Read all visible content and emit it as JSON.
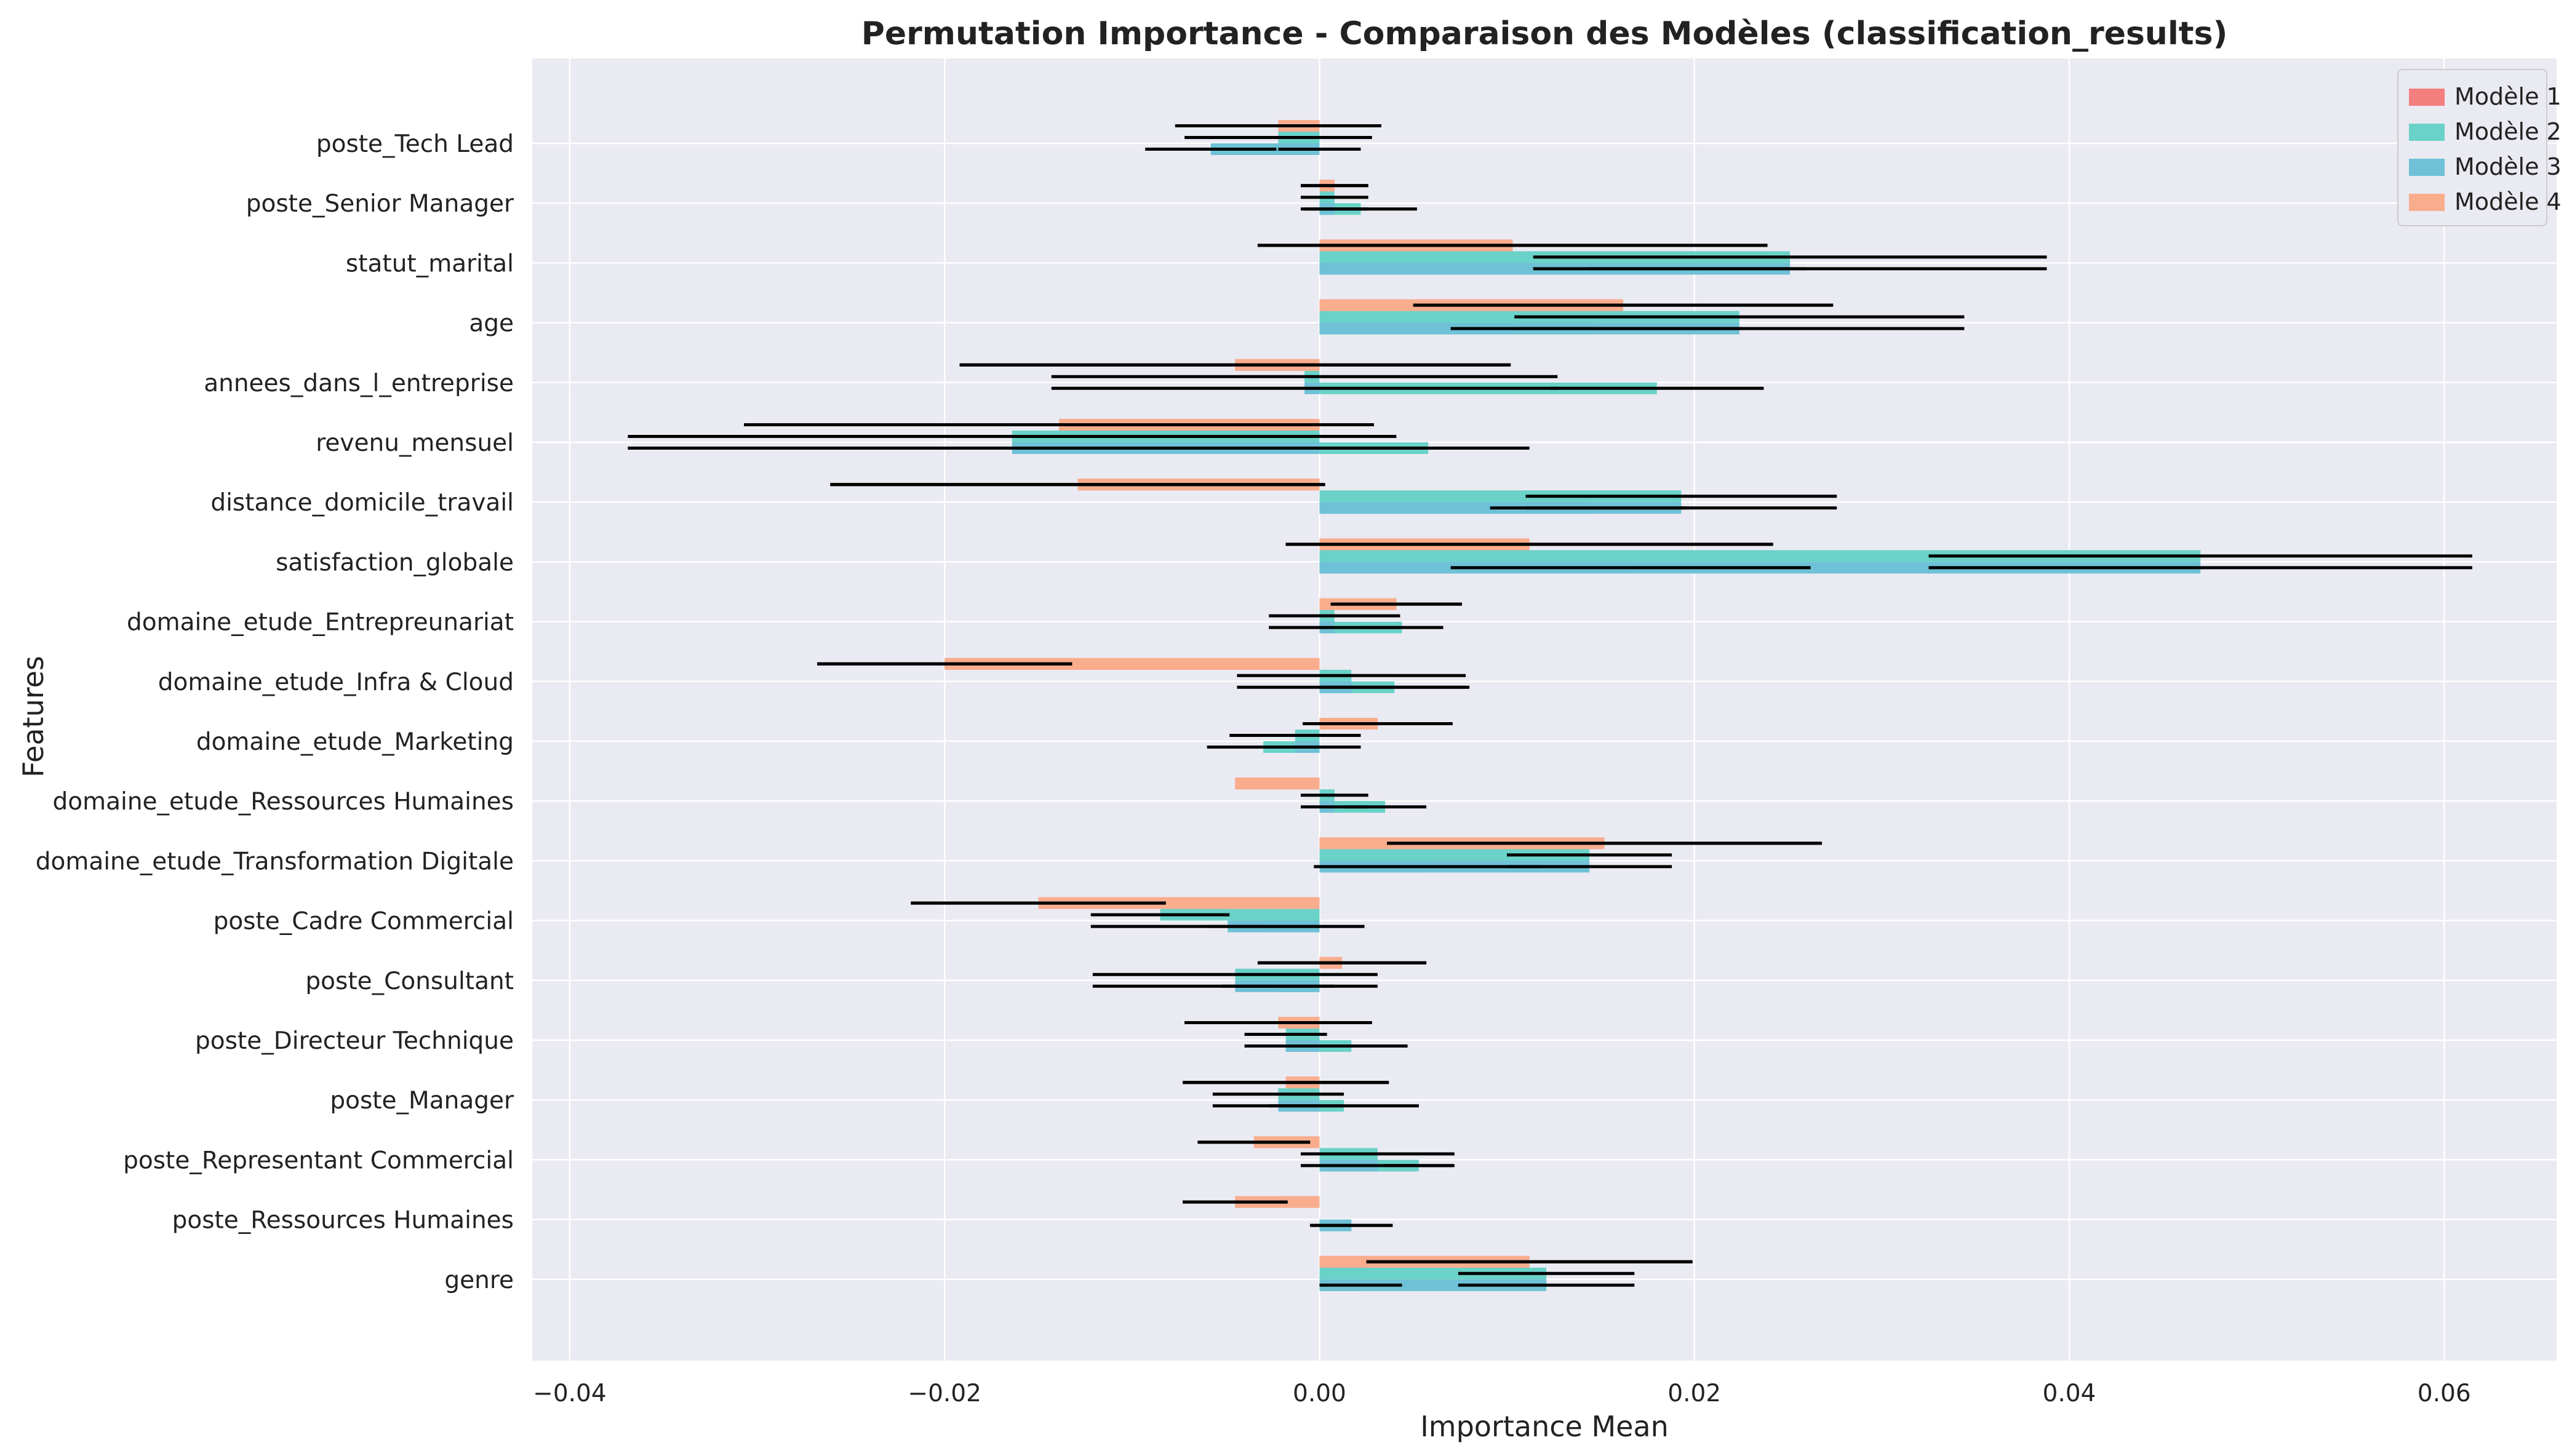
{
  "chart_data": {
    "type": "bar",
    "orientation": "horizontal",
    "title": "Permutation Importance - Comparaison des Modèles (classification_results)",
    "xlabel": "Importance Mean",
    "ylabel": "Features",
    "xlim": [
      -0.042,
      0.066
    ],
    "xticks": [
      -0.04,
      -0.02,
      0.0,
      0.02,
      0.04,
      0.06
    ],
    "xtick_labels": [
      "−0.04",
      "−0.02",
      "0.00",
      "0.02",
      "0.04",
      "0.06"
    ],
    "grid": true,
    "legend_position": "top-right",
    "categories": [
      "poste_Tech Lead",
      "poste_Senior Manager",
      "statut_marital",
      "age",
      "annees_dans_l_entreprise",
      "revenu_mensuel",
      "distance_domicile_travail",
      "satisfaction_globale",
      "domaine_etude_Entrepreunariat",
      "domaine_etude_Infra & Cloud",
      "domaine_etude_Marketing",
      "domaine_etude_Ressources Humaines",
      "domaine_etude_Transformation Digitale",
      "poste_Cadre Commercial",
      "poste_Consultant",
      "poste_Directeur Technique",
      "poste_Manager",
      "poste_Representant Commercial",
      "poste_Ressources Humaines",
      "genre"
    ],
    "series": [
      {
        "name": "Modèle 1",
        "color": "#f47f7f",
        "values": [
          -0.0022,
          0.0008,
          0.0103,
          0.0162,
          -0.0045,
          -0.0139,
          -0.0129,
          0.0112,
          0.0041,
          -0.02,
          0.0031,
          -0.0045,
          0.0152,
          -0.015,
          0.0012,
          -0.0022,
          -0.0018,
          -0.0035,
          -0.0045,
          0.0112
        ],
        "errors": [
          0.0055,
          0.0018,
          0.0136,
          0.0112,
          0.0147,
          0.0168,
          0.0132,
          0.013,
          0.0035,
          0.0068,
          0.004,
          0.0,
          0.0116,
          0.0068,
          0.0045,
          0.005,
          0.0055,
          0.003,
          0.0028,
          0.0087
        ]
      },
      {
        "name": "Modèle 2",
        "color": "#6ad2c8",
        "values": [
          -0.0022,
          0.0008,
          0.0251,
          0.0224,
          -0.0008,
          -0.0164,
          0.0193,
          0.047,
          0.0008,
          0.0017,
          -0.0013,
          0.0008,
          0.0144,
          -0.0085,
          -0.0045,
          -0.0018,
          -0.0022,
          0.0031,
          0.0,
          0.0121
        ],
        "errors": [
          0.005,
          0.0018,
          0.0137,
          0.012,
          0.0135,
          0.0205,
          0.0083,
          0.0145,
          0.0035,
          0.0061,
          0.0035,
          0.0018,
          0.0044,
          0.0037,
          0.0076,
          0.0022,
          0.0035,
          0.0041,
          0.0,
          0.0047
        ]
      },
      {
        "name": "Modèle 3",
        "color": "#6ec1d6",
        "values": [
          -0.0058,
          0.0008,
          0.0251,
          0.0224,
          -0.0008,
          -0.0164,
          0.0193,
          0.047,
          0.0008,
          0.0017,
          -0.0013,
          0.0008,
          0.0144,
          -0.0049,
          -0.0045,
          -0.0018,
          -0.0022,
          0.0031,
          0.0017,
          0.0121
        ],
        "errors": [
          0.0035,
          0.0018,
          0.0137,
          0.012,
          0.0135,
          0.0205,
          0.0083,
          0.0145,
          0.0035,
          0.0061,
          0.0035,
          0.0018,
          0.0044,
          0.0073,
          0.0076,
          0.0022,
          0.0035,
          0.0041,
          0.0022,
          0.0047
        ]
      },
      {
        "name": "Modèle 4",
        "color": "#f9ad8d",
        "values": [
          -0.0022,
          0.0008,
          0.0103,
          0.0162,
          -0.0045,
          -0.0139,
          -0.0129,
          0.0112,
          0.0041,
          -0.02,
          0.0031,
          -0.0045,
          0.0152,
          -0.015,
          0.0012,
          -0.0022,
          -0.0018,
          -0.0035,
          -0.0045,
          0.0112
        ],
        "errors": [
          0.0055,
          0.0018,
          0.0136,
          0.0112,
          0.0147,
          0.0168,
          0.0132,
          0.013,
          0.0035,
          0.0068,
          0.004,
          0.0,
          0.0116,
          0.0068,
          0.0045,
          0.005,
          0.0055,
          0.003,
          0.0028,
          0.0087
        ]
      },
      {
        "name": "",
        "color": "#6ad2c8",
        "values": [
          0.0,
          0.0022,
          0.0202,
          0.0148,
          0.018,
          0.0058,
          0.0144,
          0.0166,
          0.0044,
          0.004,
          -0.003,
          0.0035,
          0.0058,
          -0.003,
          -0.0022,
          0.0017,
          0.0013,
          0.0053,
          0.0017,
          0.0022
        ],
        "errors": [
          0.0022,
          0.003,
          0.0058,
          0.0078,
          0.0057,
          0.0054,
          0.0053,
          0.0096,
          0.0022,
          0.004,
          0.003,
          0.0022,
          0.0061,
          0.003,
          0.003,
          0.003,
          0.004,
          0.0018,
          0.0022,
          0.0022
        ]
      }
    ]
  }
}
